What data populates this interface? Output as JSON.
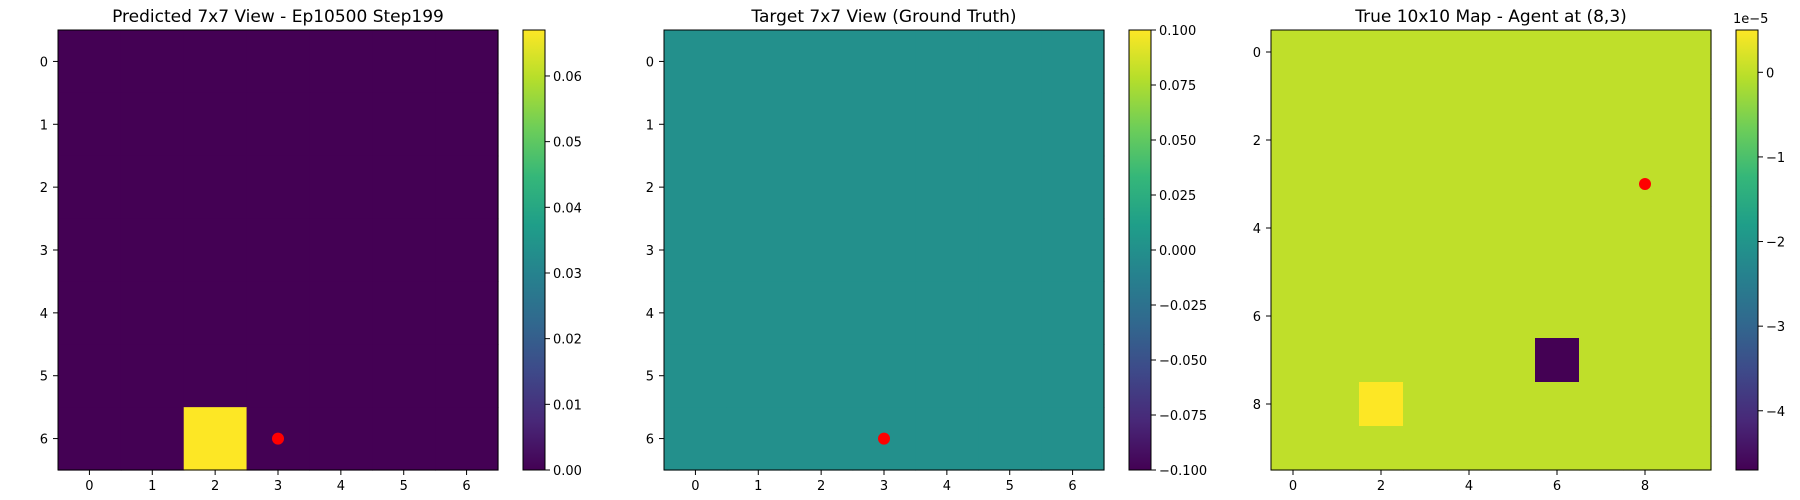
{
  "chart_data": [
    {
      "type": "heatmap",
      "title": "Predicted 7x7 View - Ep10500 Step199",
      "rows": 7,
      "cols": 7,
      "x_ticks": [
        0,
        1,
        2,
        3,
        4,
        5,
        6
      ],
      "y_ticks": [
        0,
        1,
        2,
        3,
        4,
        5,
        6
      ],
      "values": [
        [
          0,
          0,
          0,
          0,
          0,
          0,
          0
        ],
        [
          0,
          0,
          0,
          0,
          0,
          0,
          0
        ],
        [
          0,
          0,
          0,
          0,
          0,
          0,
          0
        ],
        [
          0,
          0,
          0,
          0,
          0,
          0,
          0
        ],
        [
          0,
          0,
          0,
          0,
          0,
          0,
          0
        ],
        [
          0,
          0,
          0,
          0,
          0,
          0,
          0
        ],
        [
          0,
          0,
          0.067,
          0,
          0,
          0,
          0
        ]
      ],
      "vmin": 0,
      "vmax": 0.067,
      "colormap": "viridis",
      "colorbar_ticks": [
        "0.00",
        "0.01",
        "0.02",
        "0.03",
        "0.04",
        "0.05",
        "0.06"
      ],
      "colorbar_tick_values": [
        0,
        0.01,
        0.02,
        0.03,
        0.04,
        0.05,
        0.06
      ],
      "colorbar_offset": "",
      "marker": {
        "x": 3,
        "y": 6,
        "color": "#ff0000"
      }
    },
    {
      "type": "heatmap",
      "title": "Target 7x7 View (Ground Truth)",
      "rows": 7,
      "cols": 7,
      "x_ticks": [
        0,
        1,
        2,
        3,
        4,
        5,
        6
      ],
      "y_ticks": [
        0,
        1,
        2,
        3,
        4,
        5,
        6
      ],
      "values": [
        [
          0,
          0,
          0,
          0,
          0,
          0,
          0
        ],
        [
          0,
          0,
          0,
          0,
          0,
          0,
          0
        ],
        [
          0,
          0,
          0,
          0,
          0,
          0,
          0
        ],
        [
          0,
          0,
          0,
          0,
          0,
          0,
          0
        ],
        [
          0,
          0,
          0,
          0,
          0,
          0,
          0
        ],
        [
          0,
          0,
          0,
          0,
          0,
          0,
          0
        ],
        [
          0,
          0,
          0,
          0,
          0,
          0,
          0
        ]
      ],
      "vmin": -0.1,
      "vmax": 0.1,
      "colormap": "viridis",
      "colorbar_ticks": [
        "−0.100",
        "−0.075",
        "−0.050",
        "−0.025",
        "0.000",
        "0.025",
        "0.050",
        "0.075",
        "0.100"
      ],
      "colorbar_tick_values": [
        -0.1,
        -0.075,
        -0.05,
        -0.025,
        0,
        0.025,
        0.05,
        0.075,
        0.1
      ],
      "colorbar_offset": "",
      "marker": {
        "x": 3,
        "y": 6,
        "color": "#ff0000"
      }
    },
    {
      "type": "heatmap",
      "title": "True 10x10 Map - Agent at (8,3)",
      "rows": 10,
      "cols": 10,
      "x_ticks": [
        0,
        2,
        4,
        6,
        8
      ],
      "y_ticks": [
        0,
        2,
        4,
        6,
        8
      ],
      "values": [
        [
          0,
          0,
          0,
          0,
          0,
          0,
          0,
          0,
          0,
          0
        ],
        [
          0,
          0,
          0,
          0,
          0,
          0,
          0,
          0,
          0,
          0
        ],
        [
          0,
          0,
          0,
          0,
          0,
          0,
          0,
          0,
          0,
          0
        ],
        [
          0,
          0,
          0,
          0,
          0,
          0,
          0,
          0,
          0,
          0
        ],
        [
          0,
          0,
          0,
          0,
          0,
          0,
          0,
          0,
          0,
          0
        ],
        [
          0,
          0,
          0,
          0,
          0,
          0,
          0,
          0,
          0,
          0
        ],
        [
          0,
          0,
          0,
          0,
          0,
          0,
          0,
          0,
          0,
          0
        ],
        [
          0,
          0,
          0,
          0,
          0,
          0,
          -4.7,
          0,
          0,
          0
        ],
        [
          0,
          0,
          0.5,
          0,
          0,
          0,
          0,
          0,
          0,
          0
        ],
        [
          0,
          0,
          0,
          0,
          0,
          0,
          0,
          0,
          0,
          0
        ]
      ],
      "vmin": -4.7,
      "vmax": 0.5,
      "colormap": "viridis",
      "colorbar_ticks": [
        "−4",
        "−3",
        "−2",
        "−1",
        "0"
      ],
      "colorbar_tick_values": [
        -4,
        -3,
        -2,
        -1,
        0
      ],
      "colorbar_offset": "1e−5",
      "marker": {
        "x": 8,
        "y": 3,
        "color": "#ff0000"
      }
    }
  ]
}
